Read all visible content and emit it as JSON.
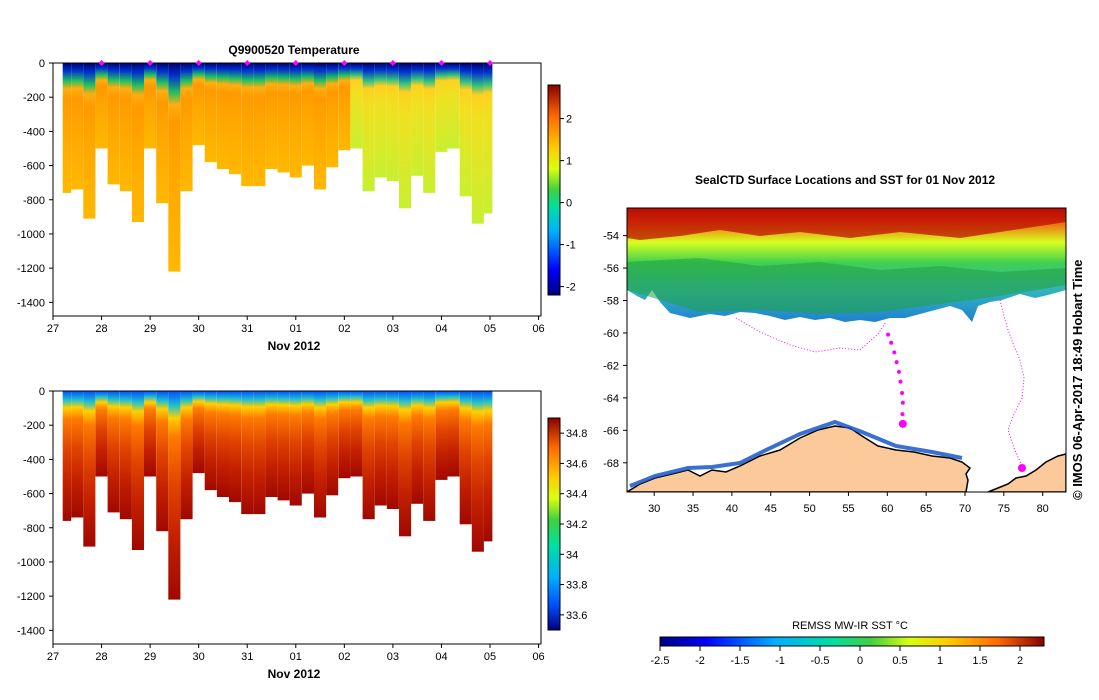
{
  "chart_data": [
    {
      "type": "heatmap",
      "title": "Q9900520  Temperature",
      "xlabel": "Nov 2012",
      "ylabel": "",
      "x_tick_labels": [
        "27",
        "28",
        "29",
        "30",
        "31",
        "01",
        "02",
        "03",
        "04",
        "05",
        "06"
      ],
      "x_day_range": [
        27,
        37.05
      ],
      "ylim": [
        -1480,
        0
      ],
      "y_ticks": [
        0,
        -200,
        -400,
        -600,
        -800,
        -1000,
        -1200,
        -1400
      ],
      "colorbar": {
        "min": -2.2,
        "max": 2.8,
        "ticks": [
          2,
          1,
          0,
          -1,
          -2
        ]
      },
      "profile_days": [
        27.25,
        27.5,
        27.75,
        28.0,
        28.25,
        28.5,
        28.75,
        29.0,
        29.25,
        29.5,
        29.75,
        30.0,
        30.25,
        30.5,
        30.75,
        31.0,
        31.25,
        31.5,
        31.75,
        32.0,
        32.25,
        32.5,
        32.75,
        33.0,
        33.25,
        33.5,
        33.75,
        34.0,
        34.25,
        34.5,
        34.75,
        35.0,
        35.25,
        35.5,
        35.75,
        36.0
      ],
      "profile_depths": [
        -760,
        -740,
        -910,
        -500,
        -710,
        -750,
        -930,
        -500,
        -820,
        -1220,
        -750,
        -480,
        -580,
        -620,
        -650,
        -720,
        -720,
        -620,
        -640,
        -670,
        -600,
        -740,
        -610,
        -510,
        -500,
        -750,
        -670,
        -690,
        -850,
        -660,
        -760,
        -520,
        -500,
        -780,
        -940,
        -880
      ],
      "surface_markers_days": [
        28,
        29,
        30,
        31,
        32,
        33,
        34,
        35,
        36
      ]
    },
    {
      "type": "heatmap",
      "title": "",
      "xlabel": "Nov 2012",
      "ylabel": "",
      "x_tick_labels": [
        "27",
        "28",
        "29",
        "30",
        "31",
        "01",
        "02",
        "03",
        "04",
        "05",
        "06"
      ],
      "x_day_range": [
        27,
        37.05
      ],
      "ylim": [
        -1480,
        0
      ],
      "y_ticks": [
        0,
        -200,
        -400,
        -600,
        -800,
        -1000,
        -1200,
        -1400
      ],
      "colorbar": {
        "min": 33.5,
        "max": 34.9,
        "ticks": [
          34.8,
          34.6,
          34.4,
          34.2,
          34,
          33.8,
          33.6
        ]
      },
      "profile_days": [
        27.25,
        27.5,
        27.75,
        28.0,
        28.25,
        28.5,
        28.75,
        29.0,
        29.25,
        29.5,
        29.75,
        30.0,
        30.25,
        30.5,
        30.75,
        31.0,
        31.25,
        31.5,
        31.75,
        32.0,
        32.25,
        32.5,
        32.75,
        33.0,
        33.25,
        33.5,
        33.75,
        34.0,
        34.25,
        34.5,
        34.75,
        35.0,
        35.25,
        35.5,
        35.75,
        36.0
      ],
      "profile_depths": [
        -760,
        -740,
        -910,
        -500,
        -710,
        -750,
        -930,
        -500,
        -820,
        -1220,
        -750,
        -480,
        -580,
        -620,
        -650,
        -720,
        -720,
        -620,
        -640,
        -670,
        -600,
        -740,
        -610,
        -510,
        -500,
        -750,
        -670,
        -690,
        -850,
        -660,
        -760,
        -520,
        -500,
        -780,
        -940,
        -880
      ]
    },
    {
      "type": "map",
      "title": "SealCTD Surface Locations and SST for 01 Nov 2012",
      "x_ticks": [
        30,
        35,
        40,
        45,
        50,
        55,
        60,
        65,
        70,
        75,
        80
      ],
      "xlim": [
        26.5,
        83
      ],
      "y_ticks": [
        -54,
        -56,
        -58,
        -60,
        -62,
        -64,
        -66,
        -68
      ],
      "ylim": [
        -69.8,
        -52.3
      ],
      "colorbar": {
        "label": "REMSS MW-IR SST °C",
        "min": -2.5,
        "max": 2.3,
        "ticks": [
          "-2.5",
          "-2",
          "-1.5",
          "-1",
          "-0.5",
          "0",
          "0.5",
          "1",
          "1.5",
          "2"
        ]
      },
      "track_positions_lonlat": [
        [
          62.0,
          -65.6
        ],
        [
          61.95,
          -65.0
        ],
        [
          62.0,
          -64.3
        ],
        [
          61.9,
          -63.7
        ],
        [
          61.7,
          -63.0
        ],
        [
          61.5,
          -62.4
        ],
        [
          61.2,
          -61.8
        ],
        [
          60.9,
          -61.2
        ],
        [
          60.5,
          -60.6
        ],
        [
          60.1,
          -60.1
        ]
      ],
      "latest_position_lonlat": [
        62.0,
        -65.6
      ]
    }
  ],
  "copyright": "©  IMOS 06-Apr-2017 18:49 Hobart Time",
  "colors": {
    "water_text": "#000000",
    "land": "#fbc99a",
    "track": "#ff00ff",
    "nodata": "#ffffff"
  }
}
